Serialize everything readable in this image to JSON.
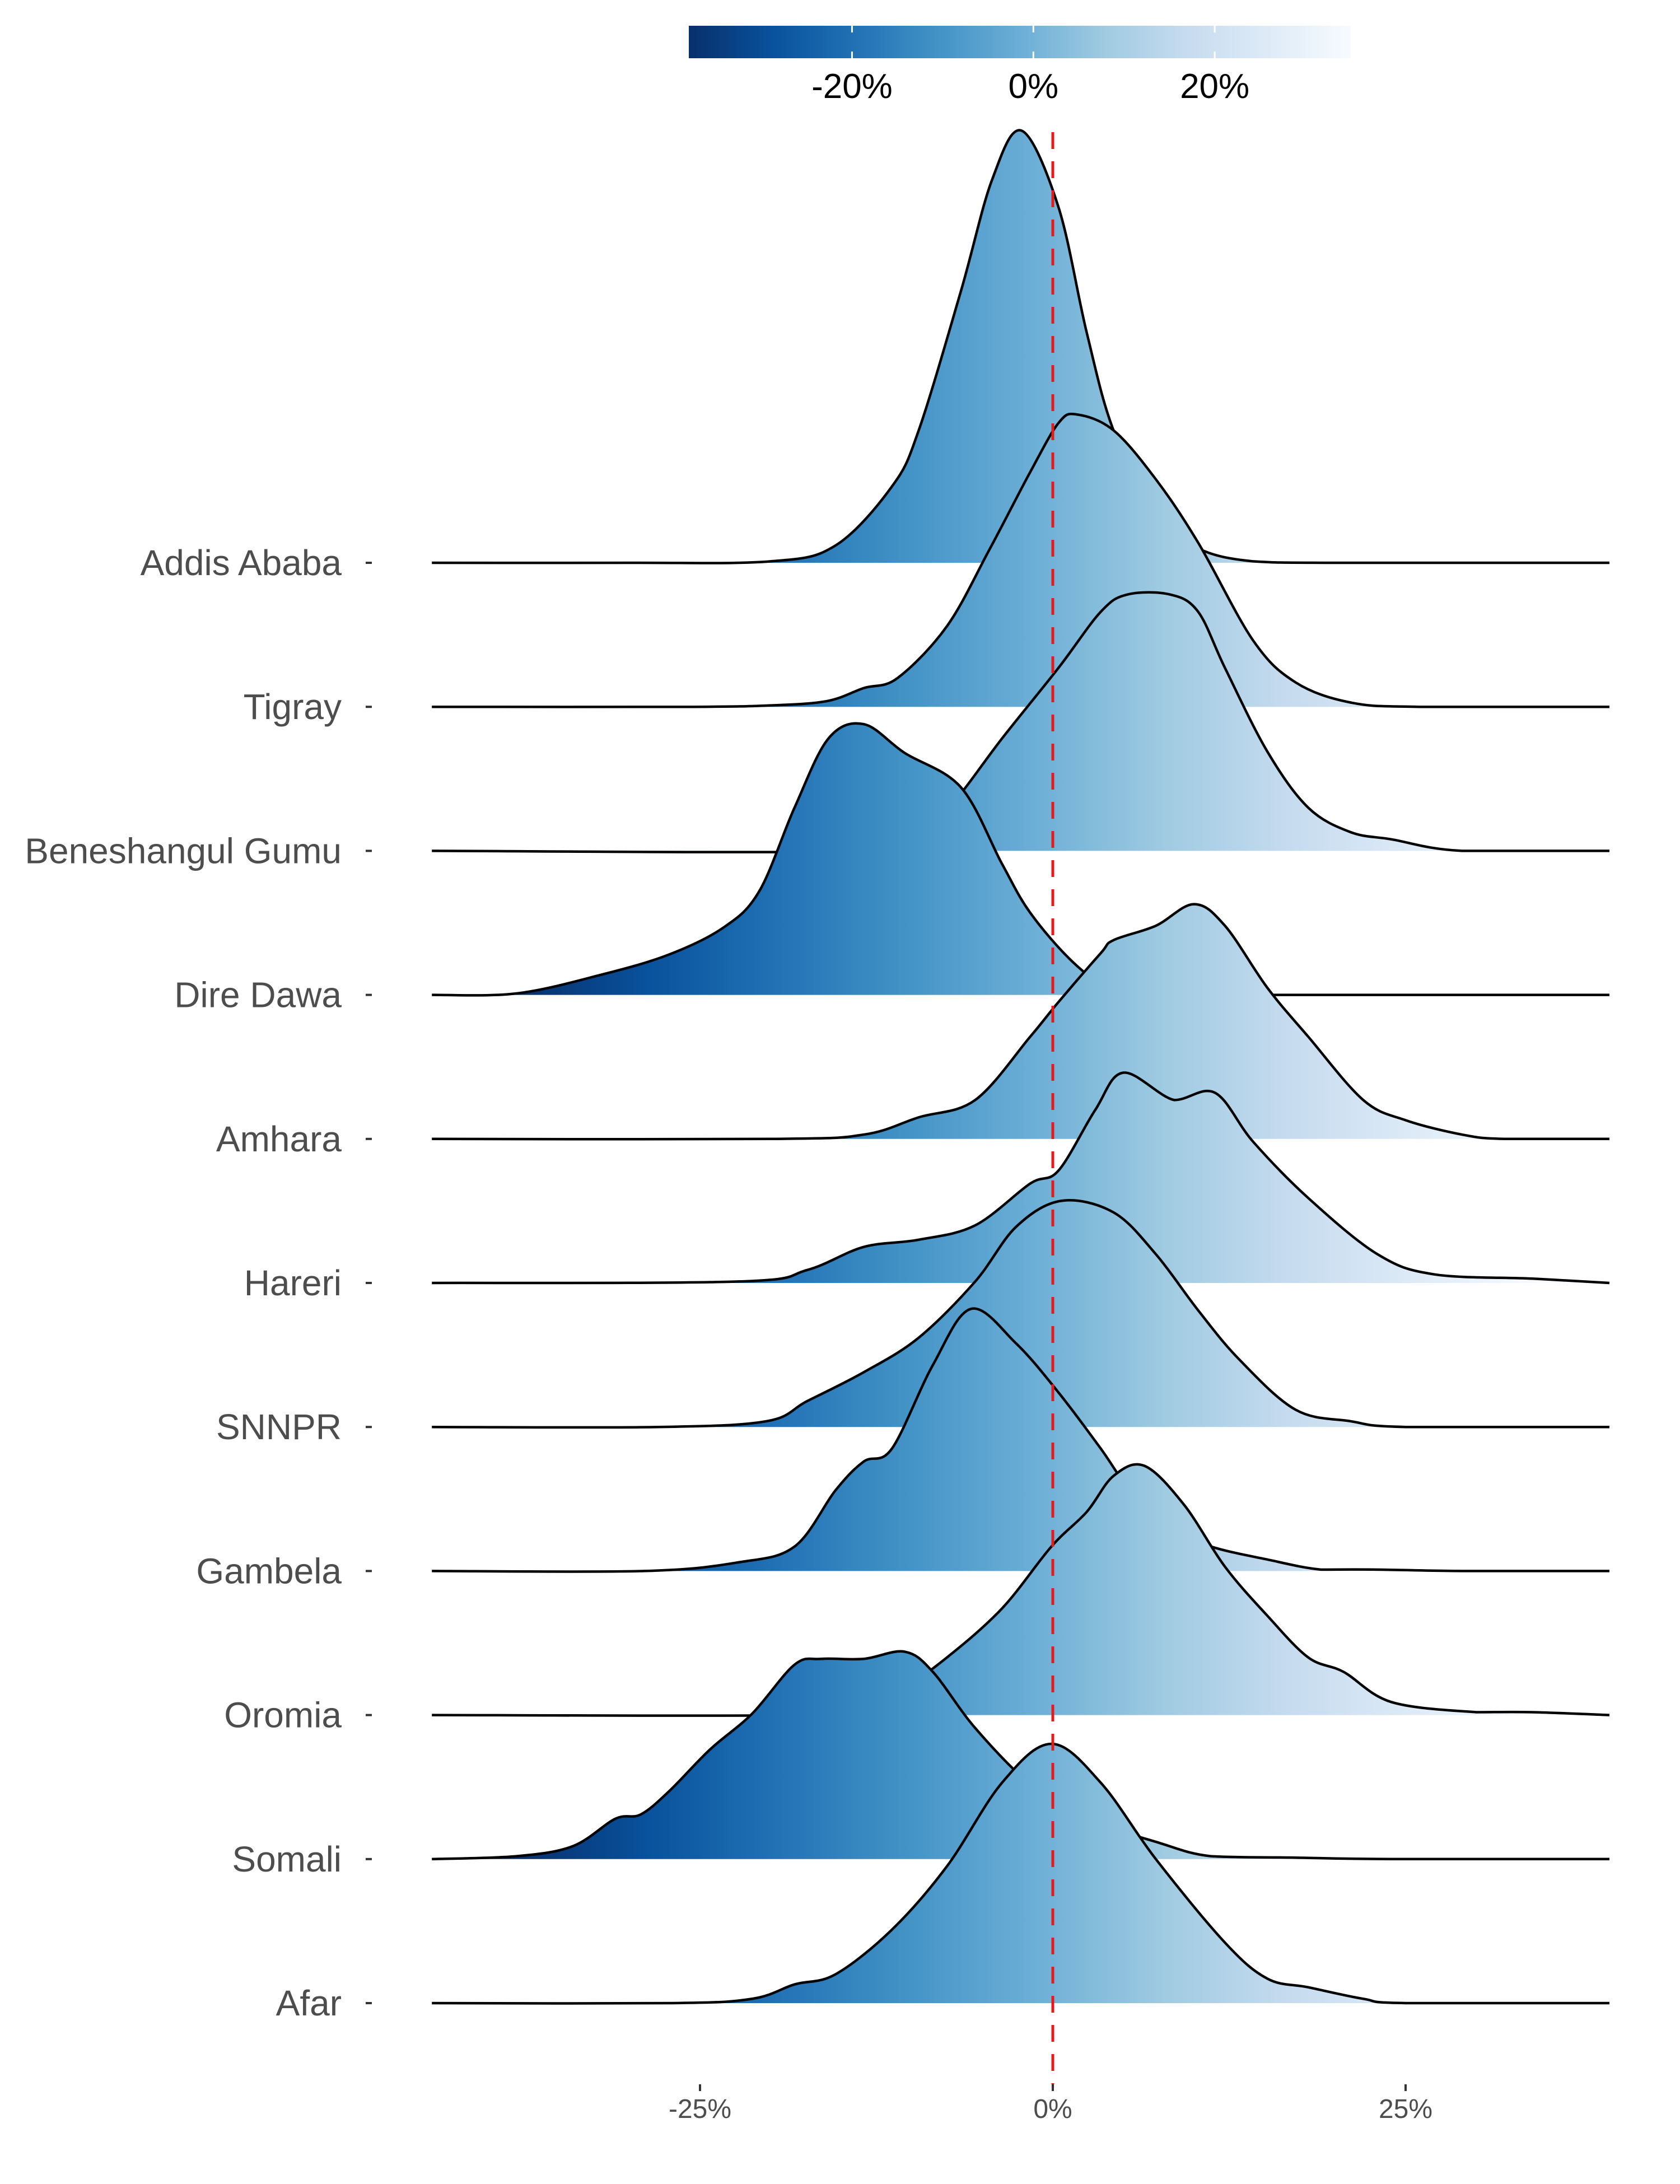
{
  "chart_data": {
    "type": "ridgeline",
    "title": "",
    "xlabel": "",
    "ylabel": "",
    "xlim": [
      -44,
      39.5
    ],
    "x_ticks": [
      {
        "value": -25,
        "label": "-25%"
      },
      {
        "value": 0,
        "label": "0%"
      },
      {
        "value": 25,
        "label": "25%"
      }
    ],
    "reference_line": {
      "x": 0,
      "style": "dashed",
      "color": "#e41a1c"
    },
    "colorbar": {
      "palette": [
        "#08306b",
        "#08519c",
        "#2171b5",
        "#4292c6",
        "#6baed6",
        "#9ecae1",
        "#c6dbef",
        "#deebf7",
        "#f7fbff"
      ],
      "range": [
        -38,
        35
      ],
      "ticks": [
        {
          "value": -20,
          "label": "-20%"
        },
        {
          "value": 0,
          "label": "0%"
        },
        {
          "value": 20,
          "label": "20%"
        }
      ],
      "placement": "top"
    },
    "series": [
      {
        "name": "Addis Ababa",
        "points": [
          [
            -44,
            0
          ],
          [
            -30,
            0
          ],
          [
            -20,
            0.01
          ],
          [
            -15.4,
            0.12
          ],
          [
            -11.4,
            0.53
          ],
          [
            -9.5,
            0.92
          ],
          [
            -6.5,
            1.89
          ],
          [
            -4.3,
            2.66
          ],
          [
            -2.2,
            3.0
          ],
          [
            0.4,
            2.47
          ],
          [
            2.4,
            1.6
          ],
          [
            4.3,
            0.92
          ],
          [
            7.3,
            0.34
          ],
          [
            10.3,
            0.1
          ],
          [
            14.2,
            0.01
          ],
          [
            20,
            0
          ],
          [
            39.5,
            0
          ]
        ]
      },
      {
        "name": "Tigray",
        "points": [
          [
            -44,
            0
          ],
          [
            -26,
            0
          ],
          [
            -20,
            0.01
          ],
          [
            -16,
            0.04
          ],
          [
            -13.4,
            0.13
          ],
          [
            -11,
            0.2
          ],
          [
            -7.5,
            0.56
          ],
          [
            -4.5,
            1.09
          ],
          [
            -1.6,
            1.63
          ],
          [
            0.4,
            1.97
          ],
          [
            1.7,
            2.03
          ],
          [
            4.3,
            1.92
          ],
          [
            7.3,
            1.58
          ],
          [
            10.3,
            1.14
          ],
          [
            14.2,
            0.46
          ],
          [
            17.2,
            0.17
          ],
          [
            21.1,
            0.03
          ],
          [
            26,
            0
          ],
          [
            39.5,
            0
          ]
        ]
      },
      {
        "name": "Beneshangul Gumu",
        "points": [
          [
            -44,
            0
          ],
          [
            -12,
            0
          ],
          [
            -9,
            0.12
          ],
          [
            -6.5,
            0.4
          ],
          [
            -3.6,
            0.78
          ],
          [
            0.4,
            1.27
          ],
          [
            3.4,
            1.66
          ],
          [
            5.3,
            1.78
          ],
          [
            8.3,
            1.78
          ],
          [
            10.3,
            1.66
          ],
          [
            12.2,
            1.27
          ],
          [
            15.2,
            0.69
          ],
          [
            18.1,
            0.3
          ],
          [
            21.1,
            0.13
          ],
          [
            24,
            0.08
          ],
          [
            29,
            0
          ],
          [
            39.5,
            0
          ]
        ]
      },
      {
        "name": "Dire Dawa",
        "points": [
          [
            -44,
            0
          ],
          [
            -38,
            0.01
          ],
          [
            -32,
            0.14
          ],
          [
            -27.2,
            0.28
          ],
          [
            -23.3,
            0.47
          ],
          [
            -20.8,
            0.72
          ],
          [
            -18.3,
            1.3
          ],
          [
            -15.9,
            1.78
          ],
          [
            -13.4,
            1.88
          ],
          [
            -10.5,
            1.68
          ],
          [
            -6.5,
            1.44
          ],
          [
            -3.6,
            0.91
          ],
          [
            -1.6,
            0.57
          ],
          [
            1.4,
            0.23
          ],
          [
            4.3,
            0.02
          ],
          [
            6.3,
            0
          ],
          [
            39.5,
            0
          ]
        ]
      },
      {
        "name": "Amhara",
        "points": [
          [
            -44,
            0
          ],
          [
            -20,
            0
          ],
          [
            -13.4,
            0.03
          ],
          [
            -9.5,
            0.15
          ],
          [
            -5.5,
            0.27
          ],
          [
            -1.6,
            0.71
          ],
          [
            0.4,
            0.95
          ],
          [
            3.4,
            1.29
          ],
          [
            4.3,
            1.38
          ],
          [
            7.3,
            1.48
          ],
          [
            10,
            1.63
          ],
          [
            12.2,
            1.48
          ],
          [
            15.2,
            1.05
          ],
          [
            18.1,
            0.71
          ],
          [
            22,
            0.27
          ],
          [
            25,
            0.13
          ],
          [
            29,
            0.03
          ],
          [
            32,
            0
          ],
          [
            39.5,
            0
          ]
        ]
      },
      {
        "name": "Hareri",
        "points": [
          [
            -44,
            0
          ],
          [
            -22.3,
            0.01
          ],
          [
            -17.4,
            0.09
          ],
          [
            -13.4,
            0.25
          ],
          [
            -9.5,
            0.3
          ],
          [
            -5.5,
            0.4
          ],
          [
            -1.6,
            0.69
          ],
          [
            0.4,
            0.78
          ],
          [
            3,
            1.2
          ],
          [
            5,
            1.46
          ],
          [
            8.6,
            1.27
          ],
          [
            11.5,
            1.32
          ],
          [
            14.2,
            0.98
          ],
          [
            18.1,
            0.59
          ],
          [
            23,
            0.2
          ],
          [
            27,
            0.06
          ],
          [
            34,
            0.03
          ],
          [
            39.5,
            0
          ]
        ]
      },
      {
        "name": "SNNPR",
        "points": [
          [
            -44,
            0
          ],
          [
            -28,
            0
          ],
          [
            -20.3,
            0.04
          ],
          [
            -17.4,
            0.18
          ],
          [
            -13.4,
            0.38
          ],
          [
            -9.5,
            0.62
          ],
          [
            -5.5,
            1.01
          ],
          [
            -2.6,
            1.39
          ],
          [
            0.6,
            1.57
          ],
          [
            4.3,
            1.49
          ],
          [
            7.3,
            1.2
          ],
          [
            10.3,
            0.81
          ],
          [
            13.2,
            0.47
          ],
          [
            17.2,
            0.12
          ],
          [
            21.1,
            0.04
          ],
          [
            25,
            0
          ],
          [
            39.5,
            0
          ]
        ]
      },
      {
        "name": "Gambela",
        "points": [
          [
            -44,
            0
          ],
          [
            -29,
            0
          ],
          [
            -22.3,
            0.06
          ],
          [
            -18.3,
            0.17
          ],
          [
            -15.4,
            0.56
          ],
          [
            -13.4,
            0.76
          ],
          [
            -11.4,
            0.85
          ],
          [
            -8.5,
            1.43
          ],
          [
            -5.8,
            1.82
          ],
          [
            -2.6,
            1.58
          ],
          [
            0.4,
            1.24
          ],
          [
            3.4,
            0.85
          ],
          [
            7.3,
            0.32
          ],
          [
            11.2,
            0.17
          ],
          [
            15.2,
            0.08
          ],
          [
            19,
            0.01
          ],
          [
            23,
            0.01
          ],
          [
            29,
            0
          ],
          [
            39.5,
            0
          ]
        ]
      },
      {
        "name": "Oromia",
        "points": [
          [
            -44,
            0
          ],
          [
            -17.4,
            0
          ],
          [
            -14.4,
            0.06
          ],
          [
            -10.5,
            0.2
          ],
          [
            -7.5,
            0.4
          ],
          [
            -3.6,
            0.74
          ],
          [
            -0.1,
            1.17
          ],
          [
            2.4,
            1.41
          ],
          [
            4.3,
            1.66
          ],
          [
            6.5,
            1.73
          ],
          [
            9.3,
            1.46
          ],
          [
            12.2,
            1.03
          ],
          [
            15.2,
            0.69
          ],
          [
            18.1,
            0.4
          ],
          [
            20.6,
            0.3
          ],
          [
            24,
            0.09
          ],
          [
            30,
            0.02
          ],
          [
            34,
            0.02
          ],
          [
            39.5,
            0
          ]
        ]
      },
      {
        "name": "Somali",
        "points": [
          [
            -44,
            0
          ],
          [
            -38,
            0.02
          ],
          [
            -34,
            0.09
          ],
          [
            -31,
            0.28
          ],
          [
            -29.2,
            0.31
          ],
          [
            -27.2,
            0.47
          ],
          [
            -24.3,
            0.76
          ],
          [
            -21.3,
            1.01
          ],
          [
            -18.3,
            1.35
          ],
          [
            -16.4,
            1.39
          ],
          [
            -13.4,
            1.39
          ],
          [
            -10.5,
            1.44
          ],
          [
            -8.5,
            1.3
          ],
          [
            -5.5,
            0.91
          ],
          [
            -1.6,
            0.52
          ],
          [
            2.4,
            0.28
          ],
          [
            7.3,
            0.12
          ],
          [
            11.2,
            0.02
          ],
          [
            17.2,
            0.01
          ],
          [
            24,
            0
          ],
          [
            39.5,
            0
          ]
        ]
      },
      {
        "name": "Afar",
        "points": [
          [
            -44,
            0
          ],
          [
            -27,
            0
          ],
          [
            -21.3,
            0.03
          ],
          [
            -18.3,
            0.13
          ],
          [
            -15.4,
            0.2
          ],
          [
            -11.4,
            0.51
          ],
          [
            -7.5,
            0.95
          ],
          [
            -3.6,
            1.53
          ],
          [
            -0.1,
            1.8
          ],
          [
            3.4,
            1.53
          ],
          [
            7.3,
            1.0
          ],
          [
            12.2,
            0.42
          ],
          [
            15.2,
            0.17
          ],
          [
            18.1,
            0.11
          ],
          [
            22,
            0.03
          ],
          [
            25,
            0
          ],
          [
            39.5,
            0
          ]
        ]
      }
    ]
  }
}
